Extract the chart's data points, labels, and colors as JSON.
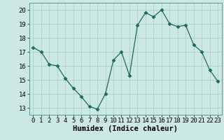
{
  "x": [
    0,
    1,
    2,
    3,
    4,
    5,
    6,
    7,
    8,
    9,
    10,
    11,
    12,
    13,
    14,
    15,
    16,
    17,
    18,
    19,
    20,
    21,
    22,
    23
  ],
  "y": [
    17.3,
    17.0,
    16.1,
    16.0,
    15.1,
    14.4,
    13.8,
    13.1,
    12.9,
    14.0,
    16.4,
    17.0,
    15.3,
    18.9,
    19.8,
    19.5,
    20.0,
    19.0,
    18.8,
    18.9,
    17.5,
    17.0,
    15.7,
    14.9
  ],
  "line_color": "#1a6b5a",
  "marker": "D",
  "marker_size": 2.5,
  "bg_color": "#cce8e4",
  "grid_color": "#b0ceca",
  "xlabel": "Humidex (Indice chaleur)",
  "xlabel_fontsize": 7.5,
  "tick_fontsize": 6.5,
  "ylim": [
    12.5,
    20.5
  ],
  "xlim": [
    -0.5,
    23.5
  ],
  "yticks": [
    13,
    14,
    15,
    16,
    17,
    18,
    19,
    20
  ],
  "xticks": [
    0,
    1,
    2,
    3,
    4,
    5,
    6,
    7,
    8,
    9,
    10,
    11,
    12,
    13,
    14,
    15,
    16,
    17,
    18,
    19,
    20,
    21,
    22,
    23
  ]
}
